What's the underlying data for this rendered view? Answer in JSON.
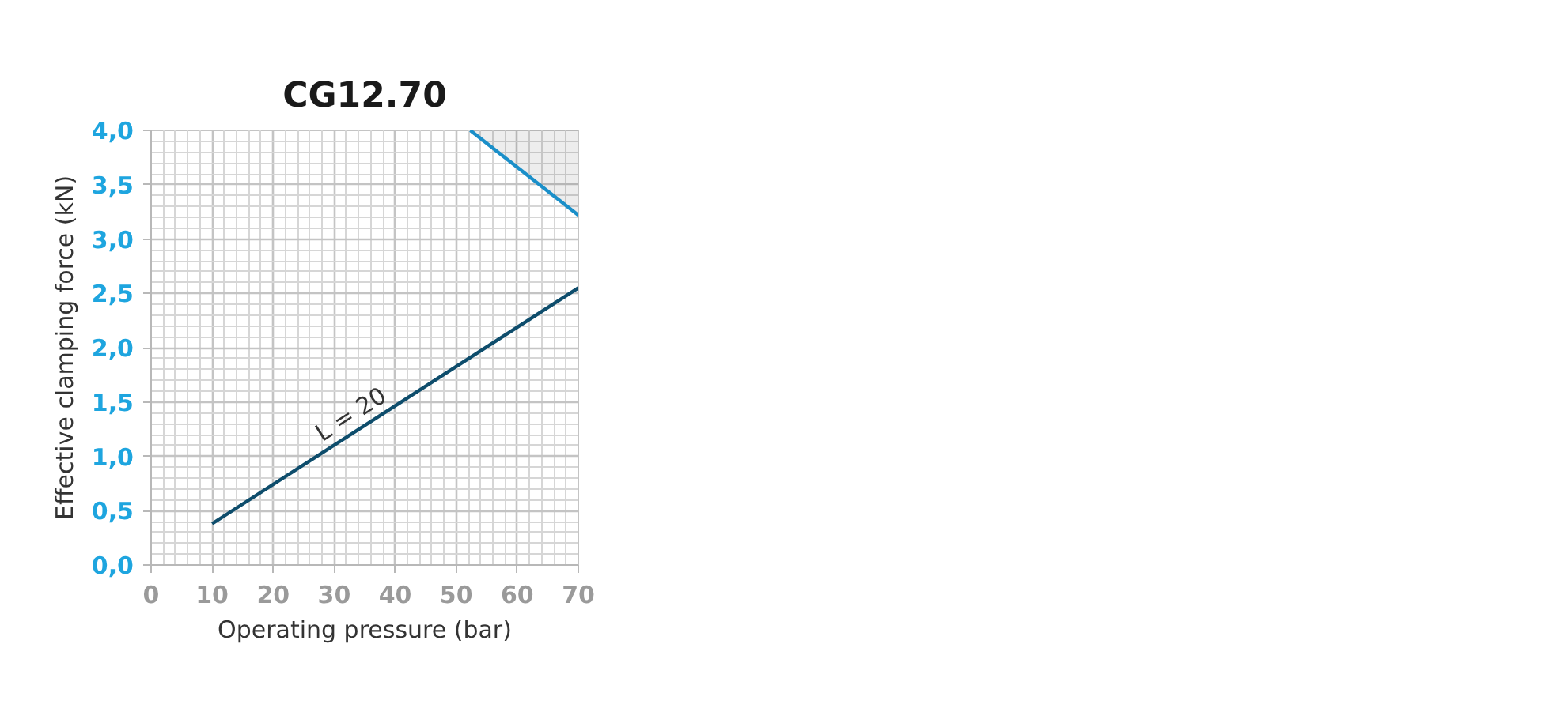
{
  "chart_data": {
    "type": "line",
    "title": "CG12.70",
    "xlabel": "Operating pressure (bar)",
    "ylabel": "Effective clamping force (kN)",
    "xlim": [
      0,
      70
    ],
    "ylim": [
      0,
      4
    ],
    "xticks": [
      0,
      10,
      20,
      30,
      40,
      50,
      60,
      70
    ],
    "yticks": [
      {
        "value": 0,
        "label": "0,0"
      },
      {
        "value": 0.5,
        "label": "0,5"
      },
      {
        "value": 1,
        "label": "1,0"
      },
      {
        "value": 1.5,
        "label": "1,5"
      },
      {
        "value": 2,
        "label": "2,0"
      },
      {
        "value": 2.5,
        "label": "2,5"
      },
      {
        "value": 3,
        "label": "3,0"
      },
      {
        "value": 3.5,
        "label": "3,5"
      },
      {
        "value": 4,
        "label": "4,0"
      }
    ],
    "grid": true,
    "legend": false,
    "marker": "none",
    "line_style": "solid",
    "series": [
      {
        "name": "L = 20",
        "color": "#0e4d6c",
        "x": [
          10,
          70
        ],
        "values": [
          0.38,
          2.55
        ]
      },
      {
        "color": "#1a8fc9",
        "x": [
          52.3,
          70
        ],
        "values": [
          4.0,
          3.22
        ],
        "lower": [
          4.0,
          3.22
        ],
        "upper": [
          4.0,
          4.0
        ]
      }
    ]
  }
}
